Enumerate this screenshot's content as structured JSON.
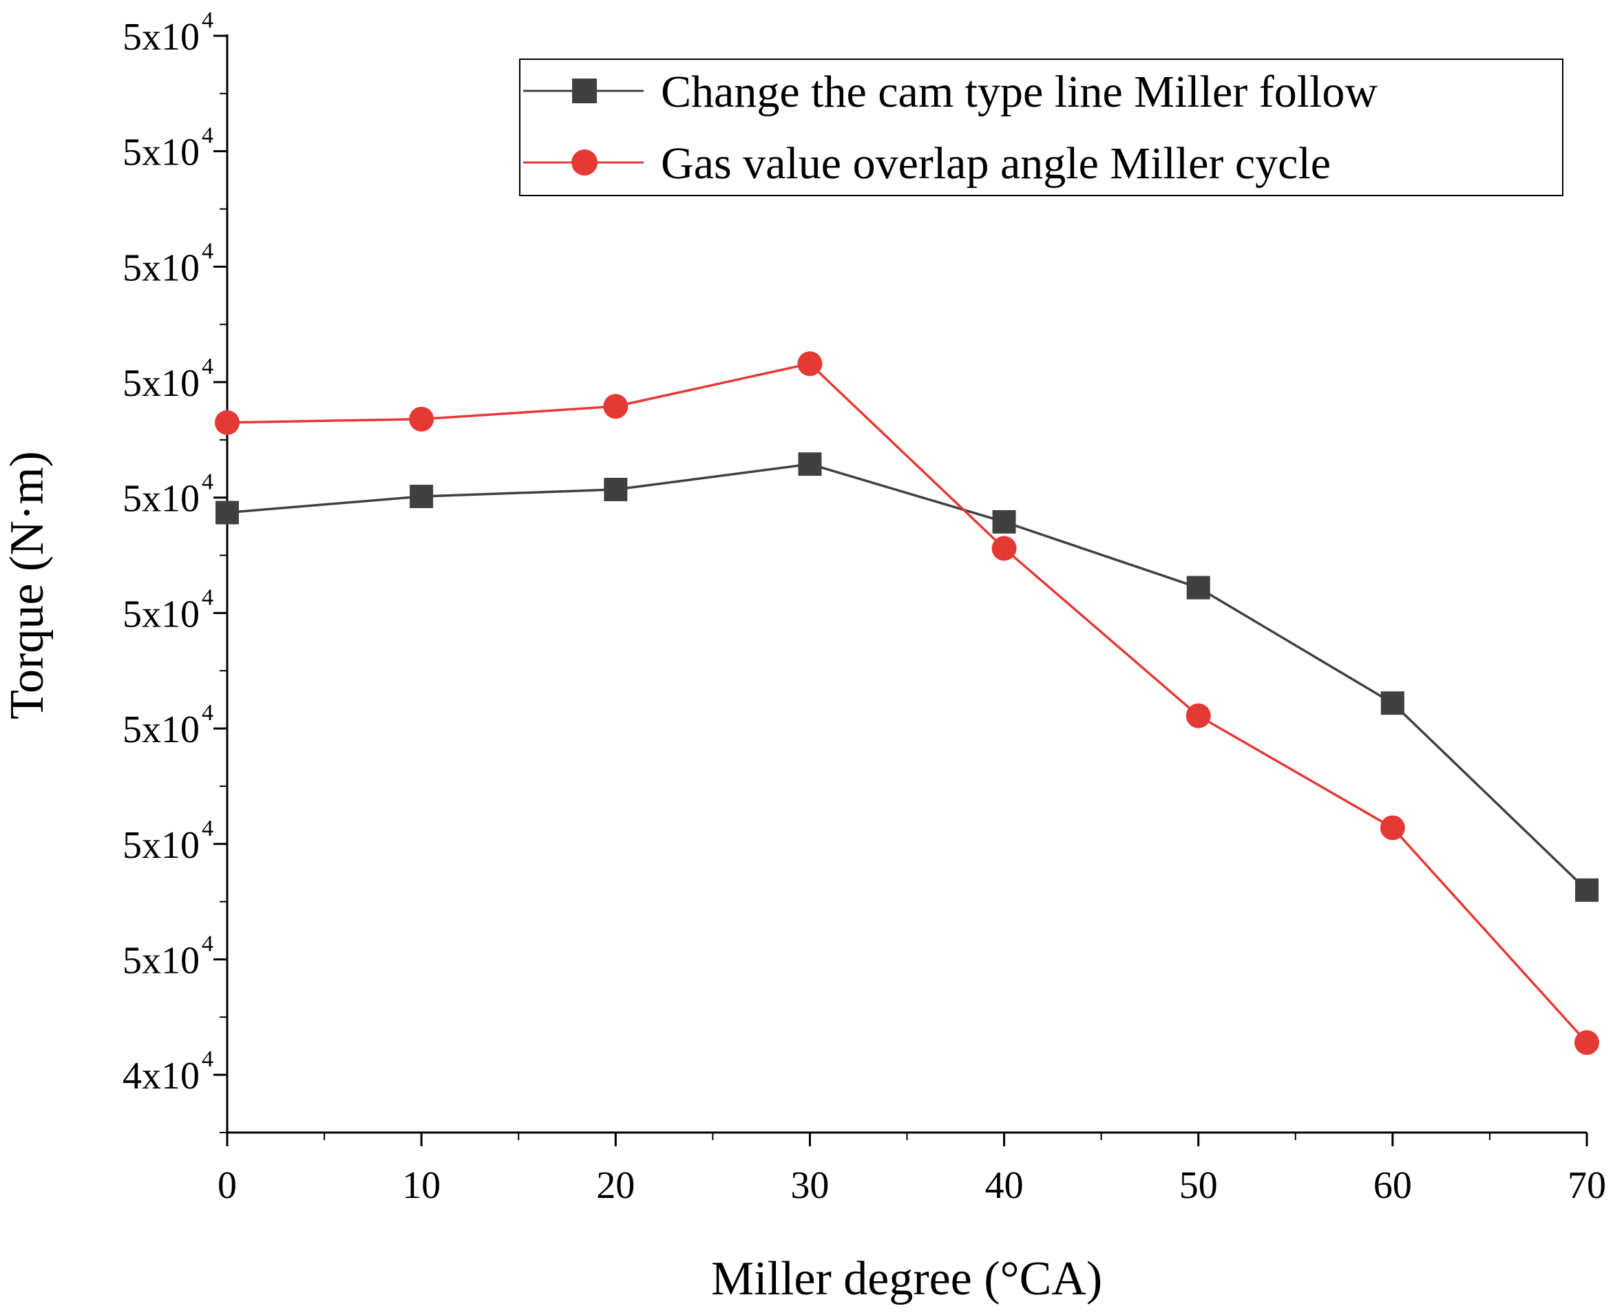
{
  "chart_data": {
    "type": "line",
    "title": "",
    "xlabel": "Miller degree (°CA)",
    "ylabel": "Torque (N·m)",
    "xlim": [
      0,
      70
    ],
    "ylim": [
      0,
      9.5
    ],
    "x_ticks": [
      0,
      10,
      20,
      30,
      40,
      50,
      60,
      70
    ],
    "x_tick_labels": [
      "0",
      "10",
      "20",
      "30",
      "40",
      "50",
      "60",
      "70"
    ],
    "y_ticks": [
      0.5,
      1.5,
      2.5,
      3.5,
      4.5,
      5.5,
      6.5,
      7.5,
      8.5,
      9.5
    ],
    "y_tick_labels": [
      {
        "base": "4x10",
        "exp": "4"
      },
      {
        "base": "5x10",
        "exp": "4"
      },
      {
        "base": "5x10",
        "exp": "4"
      },
      {
        "base": "5x10",
        "exp": "4"
      },
      {
        "base": "5x10",
        "exp": "4"
      },
      {
        "base": "5x10",
        "exp": "4"
      },
      {
        "base": "5x10",
        "exp": "4"
      },
      {
        "base": "5x10",
        "exp": "4"
      },
      {
        "base": "5x10",
        "exp": "4"
      },
      {
        "base": "5x10",
        "exp": "4"
      }
    ],
    "grid": false,
    "legend_position": "top-right",
    "x": [
      0,
      10,
      20,
      30,
      40,
      50,
      60,
      70
    ],
    "series": [
      {
        "name": "Change the cam type line Miller follow",
        "marker": "square",
        "color": "#404040",
        "values": [
          5.37,
          5.51,
          5.57,
          5.79,
          5.29,
          4.72,
          3.72,
          2.1
        ]
      },
      {
        "name": "Gas value overlap angle Miller cycle",
        "marker": "circle",
        "color": "#e53935",
        "values": [
          6.15,
          6.18,
          6.29,
          6.66,
          5.06,
          3.61,
          2.64,
          0.78
        ]
      }
    ]
  }
}
